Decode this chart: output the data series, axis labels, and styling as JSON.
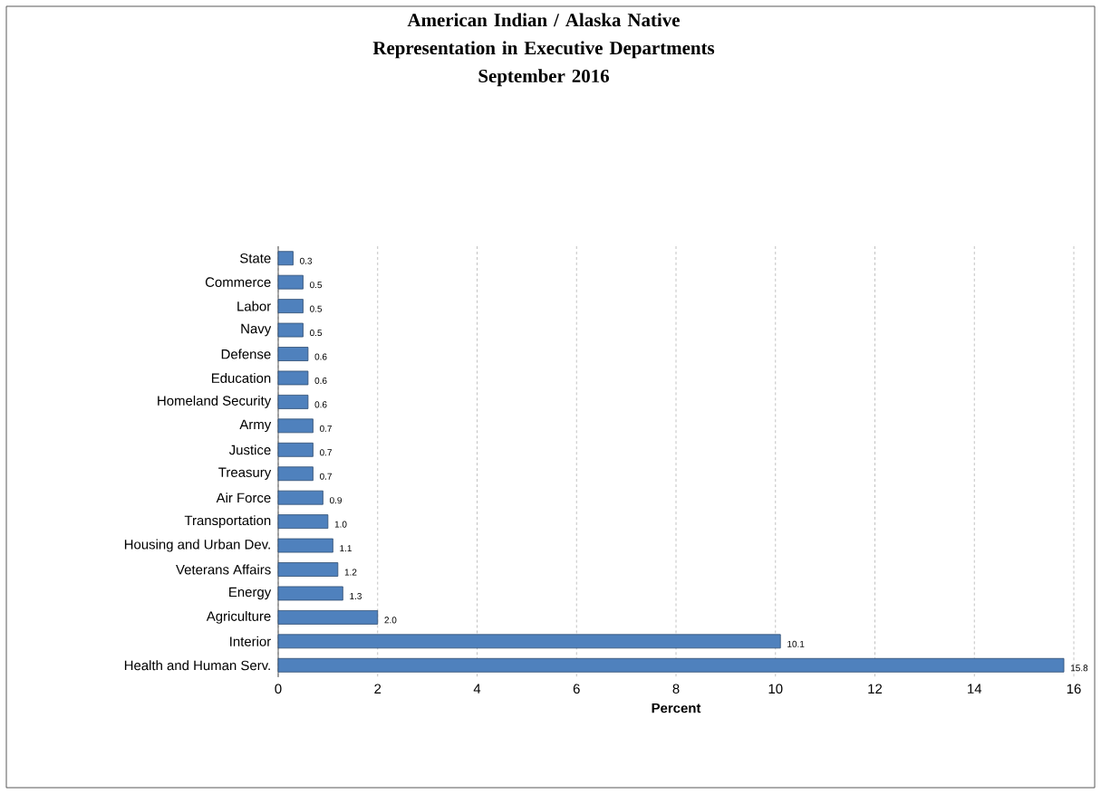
{
  "chart_data": {
    "type": "bar",
    "orientation": "horizontal",
    "title": "American Indian / Alaska Native Representation in Executive Departments",
    "subtitle": "September 2016",
    "xlabel": "Percent",
    "categories": [
      "State",
      "Commerce",
      "Labor",
      "Navy",
      "Defense",
      "Education",
      "Homeland Security",
      "Army",
      "Justice",
      "Treasury",
      "Air Force",
      "Transportation",
      "Housing and Urban Dev.",
      "Veterans Affairs",
      "Energy",
      "Agriculture",
      "Interior",
      "Health and Human Serv."
    ],
    "values": [
      0.3,
      0.5,
      0.5,
      0.5,
      0.6,
      0.6,
      0.6,
      0.7,
      0.7,
      0.7,
      0.9,
      1.0,
      1.1,
      1.2,
      1.3,
      2.0,
      10.1,
      15.8
    ],
    "value_labels": [
      "0.3",
      "0.5",
      "0.5",
      "0.5",
      "0.6",
      "0.6",
      "0.6",
      "0.7",
      "0.7",
      "0.7",
      "0.9",
      "1.0",
      "1.1",
      "1.2",
      "1.3",
      "2.0",
      "10.1",
      "15.8"
    ],
    "color": "#4f81bd",
    "xlim": [
      0,
      16
    ],
    "xticks": [
      0,
      2,
      4,
      6,
      8,
      10,
      12,
      14,
      16
    ],
    "grid": "x"
  }
}
